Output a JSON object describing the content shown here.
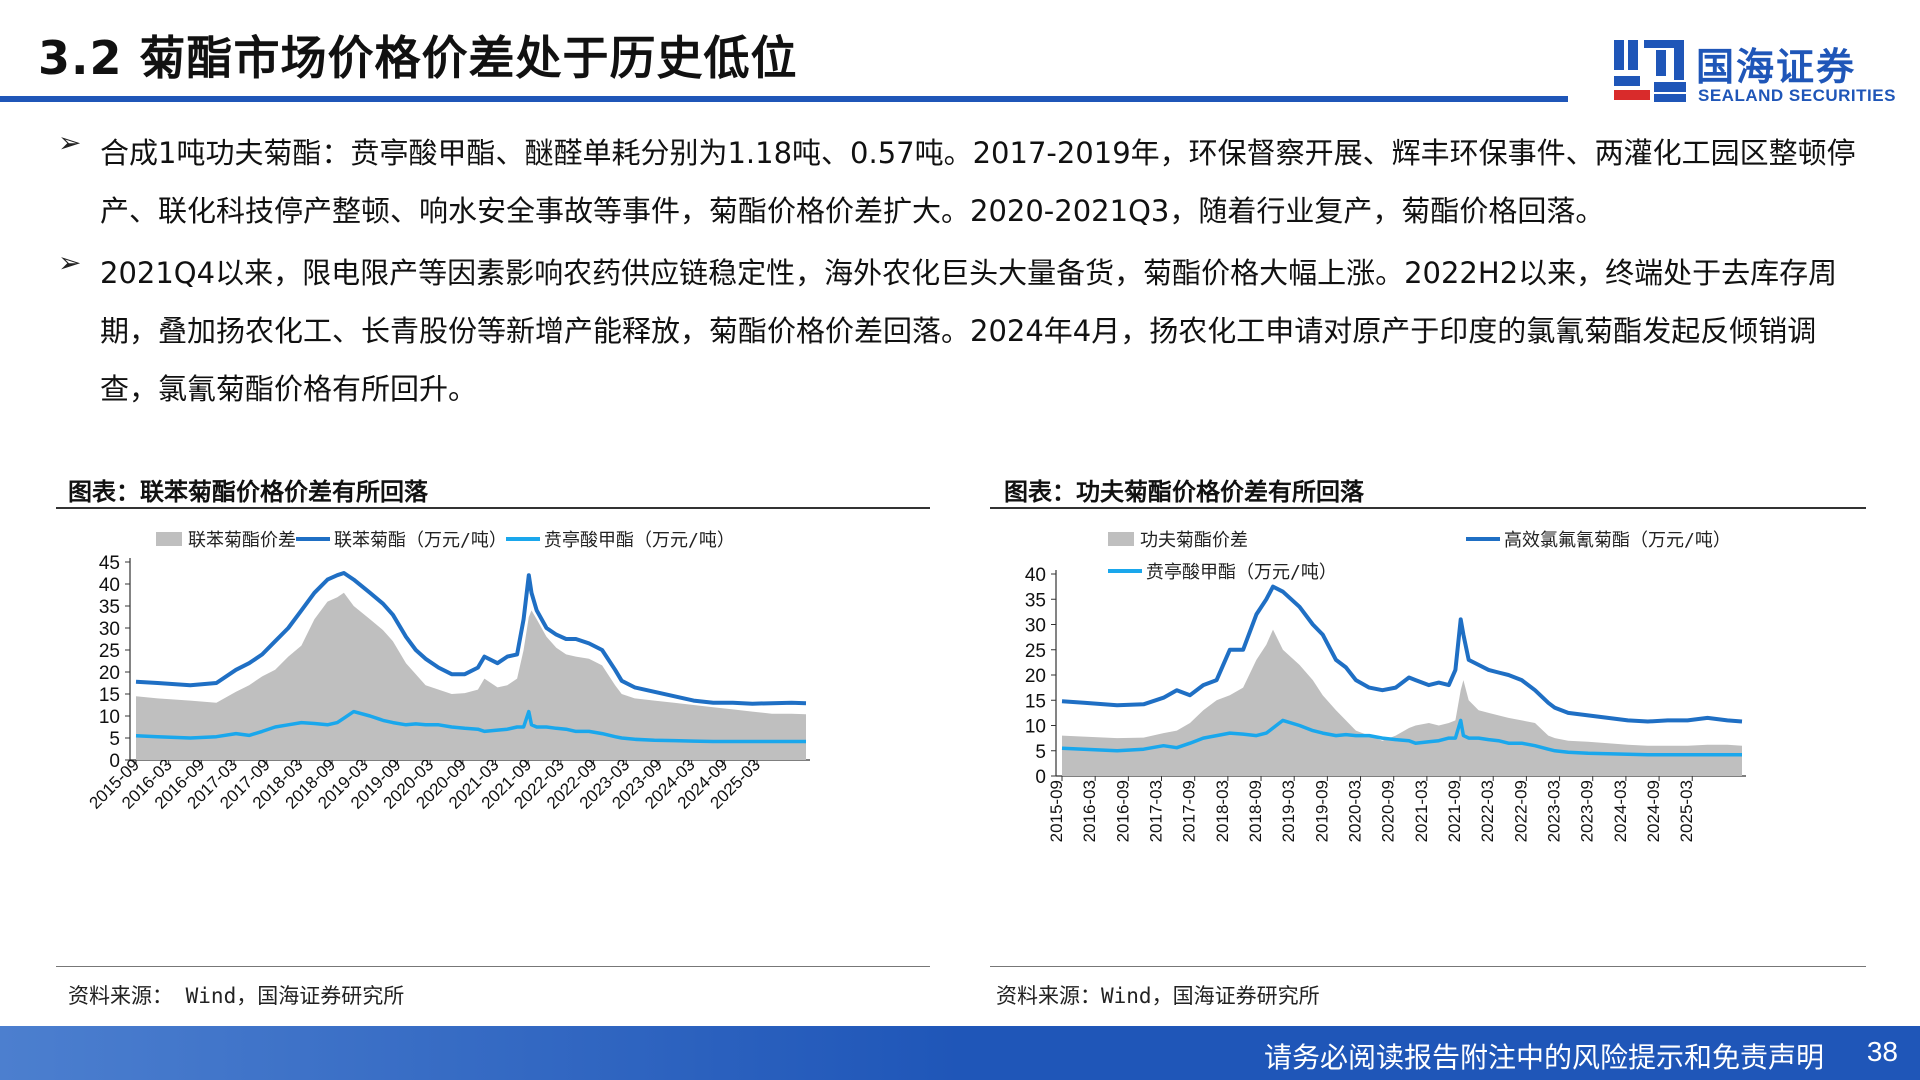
{
  "header": {
    "title": "3.2 菊酯市场价格价差处于历史低位",
    "logo_cn": "国海证券",
    "logo_en": "SEALAND SECURITIES"
  },
  "bullets": [
    {
      "marker": "➢",
      "text": "合成1吨功夫菊酯：贲亭酸甲酯、醚醛单耗分别为1.18吨、0.57吨。2017-2019年，环保督察开展、辉丰环保事件、两灌化工园区整顿停产、联化科技停产整顿、响水安全事故等事件，菊酯价格价差扩大。2020-2021Q3，随着行业复产，菊酯价格回落。"
    },
    {
      "marker": "➢",
      "text": "2021Q4以来，限电限产等因素影响农药供应链稳定性，海外农化巨头大量备货，菊酯价格大幅上涨。2022H2以来，终端处于去库存周期，叠加扬农化工、长青股份等新增产能释放，菊酯价格价差回落。2024年4月，扬农化工申请对原产于印度的氯氰菊酯发起反倾销调查，氯氰菊酯价格有所回升。"
    }
  ],
  "figures": [
    {
      "title": "图表：联苯菊酯价格价差有所回落",
      "source": "资料来源： Wind，国海证券研究所"
    },
    {
      "title": "图表：功夫菊酯价格价差有所回落",
      "source": "资料来源：Wind，国海证券研究所"
    }
  ],
  "footer": {
    "disclaimer": "请务必阅读报告附注中的风险提示和免责声明",
    "page_number": "38"
  },
  "colors": {
    "brand_blue": "#1f56b8",
    "series_spread": "#bfbfbf",
    "series_product": "#1f6fc4",
    "series_raw": "#1aa7ec"
  },
  "chart_data": [
    {
      "type": "area+line",
      "title": "图表：联苯菊酯价格价差有所回落",
      "ylim": [
        0,
        45
      ],
      "yticks": [
        0,
        5,
        10,
        15,
        20,
        25,
        30,
        35,
        40,
        45
      ],
      "legend_position": "top",
      "x_start": 2015.67,
      "x_end": 2025.92,
      "x": [
        2015.67,
        2016.0,
        2016.5,
        2016.9,
        2017.2,
        2017.4,
        2017.6,
        2017.8,
        2018.0,
        2018.2,
        2018.4,
        2018.6,
        2018.75,
        2018.85,
        2019.0,
        2019.25,
        2019.45,
        2019.6,
        2019.8,
        2019.95,
        2020.1,
        2020.3,
        2020.5,
        2020.7,
        2020.9,
        2021.0,
        2021.2,
        2021.35,
        2021.5,
        2021.6,
        2021.68,
        2021.72,
        2021.8,
        2021.95,
        2022.1,
        2022.25,
        2022.4,
        2022.6,
        2022.8,
        2023.0,
        2023.1,
        2023.3,
        2023.6,
        2023.9,
        2024.2,
        2024.5,
        2024.8,
        2025.1,
        2025.4,
        2025.7,
        2025.92
      ],
      "x_tick_labels": [
        "2015-09",
        "2016-03",
        "2016-09",
        "2017-03",
        "2017-09",
        "2018-03",
        "2018-09",
        "2019-03",
        "2019-09",
        "2020-03",
        "2020-09",
        "2021-03",
        "2021-09",
        "2022-03",
        "2022-09",
        "2023-03",
        "2023-09",
        "2024-03",
        "2024-09",
        "2025-03"
      ],
      "x_tick_values": [
        2015.67,
        2016.17,
        2016.67,
        2017.17,
        2017.67,
        2018.17,
        2018.67,
        2019.17,
        2019.67,
        2020.17,
        2020.67,
        2021.17,
        2021.67,
        2022.17,
        2022.67,
        2023.17,
        2023.67,
        2024.17,
        2024.67,
        2025.17
      ],
      "series": [
        {
          "name": "联苯菊酯价差",
          "style": "area",
          "values": [
            14.5,
            14.0,
            13.5,
            13.0,
            15.5,
            17.0,
            19.0,
            20.5,
            23.5,
            26.0,
            32.0,
            36.0,
            37.0,
            38.0,
            35.0,
            32.0,
            29.5,
            27.0,
            22.0,
            19.5,
            17.0,
            16.0,
            15.0,
            15.2,
            16.0,
            18.5,
            16.5,
            17.0,
            18.5,
            25.0,
            32.5,
            34.0,
            32.0,
            28.0,
            25.5,
            24.0,
            23.5,
            23.0,
            21.5,
            17.0,
            15.0,
            14.0,
            13.5,
            13.0,
            12.5,
            12.0,
            11.5,
            11.0,
            10.5,
            10.5,
            10.4
          ]
        },
        {
          "name": "联苯菊酯（万元/吨）",
          "style": "line",
          "values": [
            17.8,
            17.5,
            17.0,
            17.5,
            20.5,
            22.0,
            24.0,
            27.0,
            30.0,
            34.0,
            38.0,
            41.0,
            42.0,
            42.5,
            41.0,
            38.0,
            35.5,
            33.0,
            28.0,
            25.0,
            23.0,
            21.0,
            19.5,
            19.5,
            21.0,
            23.5,
            22.0,
            23.5,
            24.0,
            32.0,
            42.0,
            38.0,
            34.0,
            30.0,
            28.5,
            27.5,
            27.5,
            26.5,
            25.0,
            20.5,
            18.0,
            16.5,
            15.5,
            14.5,
            13.5,
            13.0,
            13.0,
            12.8,
            12.9,
            13.0,
            12.9
          ]
        },
        {
          "name": "贲亭酸甲酯（万元/吨）",
          "style": "line",
          "values": [
            5.5,
            5.3,
            5.0,
            5.3,
            6.0,
            5.6,
            6.5,
            7.5,
            8.0,
            8.5,
            8.3,
            8.0,
            8.5,
            9.5,
            11.0,
            10.0,
            9.0,
            8.5,
            8.0,
            8.2,
            8.0,
            8.0,
            7.5,
            7.2,
            7.0,
            6.5,
            6.8,
            7.0,
            7.5,
            7.5,
            11.0,
            8.0,
            7.5,
            7.5,
            7.2,
            7.0,
            6.5,
            6.5,
            6.0,
            5.3,
            5.0,
            4.7,
            4.5,
            4.4,
            4.3,
            4.2,
            4.2,
            4.2,
            4.2,
            4.2,
            4.2
          ]
        }
      ]
    },
    {
      "type": "area+line",
      "title": "图表：功夫菊酯价格价差有所回落",
      "ylim": [
        0,
        40
      ],
      "yticks": [
        0,
        5,
        10,
        15,
        20,
        25,
        30,
        35,
        40
      ],
      "legend_position": "top",
      "x_start": 2015.67,
      "x_end": 2025.92,
      "x": [
        2015.67,
        2016.0,
        2016.5,
        2016.9,
        2017.2,
        2017.4,
        2017.6,
        2017.8,
        2018.0,
        2018.2,
        2018.4,
        2018.6,
        2018.75,
        2018.85,
        2019.0,
        2019.25,
        2019.45,
        2019.6,
        2019.8,
        2019.95,
        2020.1,
        2020.3,
        2020.5,
        2020.7,
        2020.9,
        2021.0,
        2021.2,
        2021.35,
        2021.5,
        2021.6,
        2021.68,
        2021.72,
        2021.8,
        2021.95,
        2022.1,
        2022.25,
        2022.4,
        2022.6,
        2022.8,
        2023.0,
        2023.1,
        2023.3,
        2023.6,
        2023.9,
        2024.2,
        2024.5,
        2024.8,
        2025.1,
        2025.4,
        2025.7,
        2025.92
      ],
      "x_tick_labels": [
        "2015-09",
        "2016-03",
        "2016-09",
        "2017-03",
        "2017-09",
        "2018-03",
        "2018-09",
        "2019-03",
        "2019-09",
        "2020-03",
        "2020-09",
        "2021-03",
        "2021-09",
        "2022-03",
        "2022-09",
        "2023-03",
        "2023-09",
        "2024-03",
        "2024-09",
        "2025-03"
      ],
      "x_tick_values": [
        2015.67,
        2016.17,
        2016.67,
        2017.17,
        2017.67,
        2018.17,
        2018.67,
        2019.17,
        2019.67,
        2020.17,
        2020.67,
        2021.17,
        2021.67,
        2022.17,
        2022.67,
        2023.17,
        2023.67,
        2024.17,
        2024.67,
        2025.17
      ],
      "series": [
        {
          "name": "功夫菊酯价差",
          "style": "area",
          "values": [
            8.0,
            7.8,
            7.5,
            7.6,
            8.5,
            9.0,
            10.5,
            13.0,
            15.0,
            16.0,
            17.5,
            23.0,
            26.0,
            29.0,
            25.0,
            22.0,
            19.0,
            16.0,
            13.0,
            11.0,
            9.0,
            8.0,
            7.0,
            8.0,
            9.5,
            10.0,
            10.5,
            10.0,
            10.5,
            11.0,
            17.0,
            19.0,
            15.0,
            13.0,
            12.5,
            12.0,
            11.5,
            11.0,
            10.5,
            8.0,
            7.5,
            7.0,
            6.8,
            6.5,
            6.2,
            6.0,
            6.0,
            6.0,
            6.2,
            6.2,
            6.0
          ]
        },
        {
          "name": "高效氯氟氰菊酯（万元/吨）",
          "style": "line",
          "values": [
            14.8,
            14.5,
            14.0,
            14.2,
            15.5,
            17.0,
            16.0,
            18.0,
            19.0,
            25.0,
            25.0,
            32.0,
            35.0,
            37.5,
            36.5,
            33.5,
            30.0,
            28.0,
            23.0,
            21.5,
            19.0,
            17.5,
            17.0,
            17.5,
            19.5,
            19.0,
            18.0,
            18.5,
            18.0,
            21.0,
            31.0,
            28.0,
            23.0,
            22.0,
            21.0,
            20.5,
            20.0,
            19.0,
            17.0,
            14.5,
            13.5,
            12.5,
            12.0,
            11.5,
            11.0,
            10.8,
            11.0,
            11.0,
            11.5,
            11.0,
            10.8
          ]
        },
        {
          "name": "贲亭酸甲酯（万元/吨）",
          "style": "line",
          "values": [
            5.5,
            5.3,
            5.0,
            5.3,
            6.0,
            5.6,
            6.5,
            7.5,
            8.0,
            8.5,
            8.3,
            8.0,
            8.5,
            9.5,
            11.0,
            10.0,
            9.0,
            8.5,
            8.0,
            8.2,
            8.0,
            8.0,
            7.5,
            7.2,
            7.0,
            6.5,
            6.8,
            7.0,
            7.5,
            7.5,
            11.0,
            8.0,
            7.5,
            7.5,
            7.2,
            7.0,
            6.5,
            6.5,
            6.0,
            5.3,
            5.0,
            4.7,
            4.5,
            4.4,
            4.3,
            4.2,
            4.2,
            4.2,
            4.2,
            4.2,
            4.2
          ]
        }
      ]
    }
  ]
}
